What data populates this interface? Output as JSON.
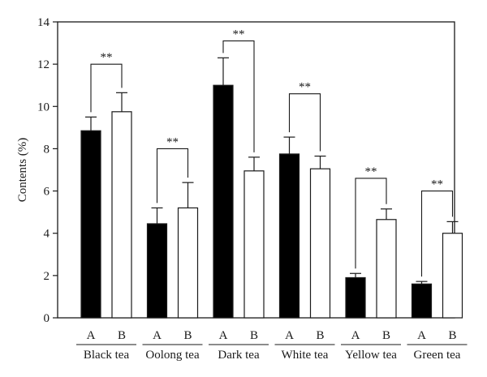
{
  "chart_data": {
    "type": "bar",
    "ylabel": "Contents (%)",
    "ylim": [
      0,
      14
    ],
    "yticks": [
      0,
      2,
      4,
      6,
      8,
      10,
      12,
      14
    ],
    "grid": false,
    "series": [
      {
        "name": "A",
        "color": "#000000",
        "values": [
          8.85,
          4.45,
          11.0,
          7.75,
          1.9,
          1.6
        ],
        "errors": [
          0.65,
          0.75,
          1.3,
          0.8,
          0.2,
          0.12
        ]
      },
      {
        "name": "B",
        "color": "#ffffff",
        "values": [
          9.75,
          5.2,
          6.95,
          7.05,
          4.65,
          4.0
        ],
        "errors": [
          0.9,
          1.2,
          0.65,
          0.6,
          0.5,
          0.55
        ]
      }
    ],
    "categories": [
      "Black tea",
      "Oolong tea",
      "Dark tea",
      "White tea",
      "Yellow tea",
      "Green tea"
    ],
    "significance": [
      {
        "label": "**",
        "bracket_y": 12.0
      },
      {
        "label": "**",
        "bracket_y": 8.0
      },
      {
        "label": "**",
        "bracket_y": 13.1
      },
      {
        "label": "**",
        "bracket_y": 10.6
      },
      {
        "label": "**",
        "bracket_y": 6.6
      },
      {
        "label": "**",
        "bracket_y": 6.0
      }
    ]
  }
}
